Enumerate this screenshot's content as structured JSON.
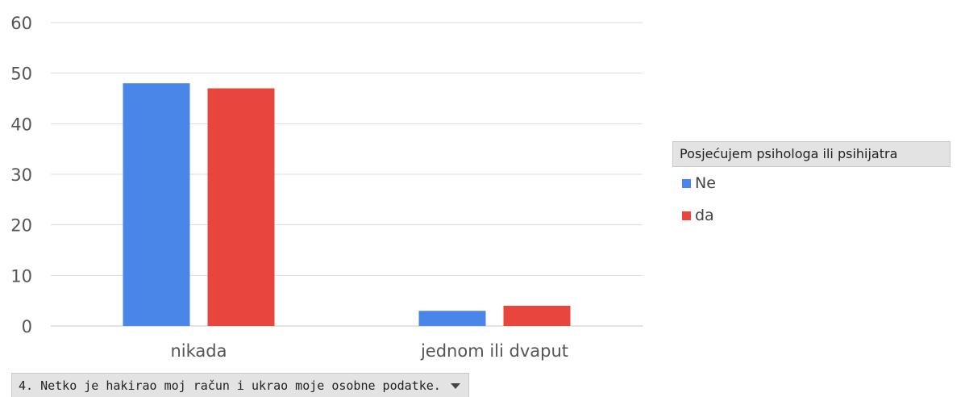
{
  "chart_data": {
    "type": "bar",
    "categories": [
      "nikada",
      "jednom ili dvaput"
    ],
    "series": [
      {
        "name": "Ne",
        "values": [
          48,
          3
        ],
        "color": "#4a86e8"
      },
      {
        "name": "da",
        "values": [
          47,
          4
        ],
        "color": "#e8453c"
      }
    ],
    "title": "",
    "xlabel": "",
    "ylabel": "",
    "ylim": [
      0,
      60
    ],
    "yticks": [
      0,
      10,
      20,
      30,
      40,
      50,
      60
    ],
    "grid": true,
    "legend_position": "right"
  },
  "legend": {
    "title": "Posjećujem psihologa ili psihijatra"
  },
  "filter": {
    "label": "4. Netko je hakirao moj račun i ukrao moje osobne podatke.",
    "icon": "dropdown-arrow-icon"
  }
}
